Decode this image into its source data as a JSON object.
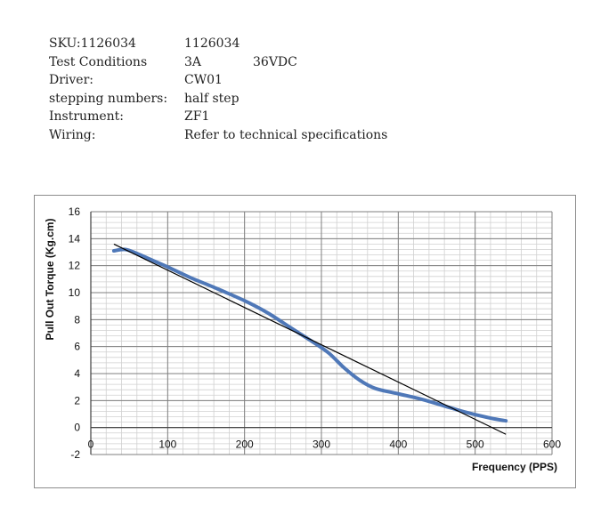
{
  "specs": [
    {
      "label": "SKU:1126034",
      "value": "1126034"
    },
    {
      "label": "Test Conditions",
      "value": "3A",
      "extra": "36VDC"
    },
    {
      "label": "Driver:",
      "value": "CW01"
    },
    {
      "label": "stepping numbers:",
      "value": "half step"
    },
    {
      "label": "Instrument:",
      "value": "ZF1"
    },
    {
      "label": "Wiring:",
      "value": "Refer to technical specifications"
    }
  ],
  "chart_data": {
    "type": "line",
    "xlabel": "Frequency (PPS)",
    "ylabel": "Pull Out Torque (Kg.cm)",
    "xlim": [
      0,
      600
    ],
    "ylim": [
      -2,
      16
    ],
    "x_ticks": [
      0,
      100,
      200,
      300,
      400,
      500,
      600
    ],
    "y_ticks": [
      -2,
      0,
      2,
      4,
      6,
      8,
      10,
      12,
      14,
      16
    ],
    "grid": true,
    "legend": "none",
    "series": [
      {
        "role": "measured",
        "color": "#4f78b8",
        "x": [
          30,
          45,
          60,
          80,
          100,
          130,
          160,
          200,
          230,
          260,
          290,
          310,
          330,
          350,
          370,
          400,
          430,
          460,
          490,
          520,
          540
        ],
        "y": [
          13.1,
          13.2,
          12.9,
          12.4,
          11.9,
          11.1,
          10.4,
          9.4,
          8.5,
          7.4,
          6.3,
          5.5,
          4.4,
          3.5,
          2.9,
          2.5,
          2.1,
          1.6,
          1.1,
          0.7,
          0.5
        ]
      },
      {
        "role": "trendline",
        "color": "#000000",
        "x": [
          30,
          540
        ],
        "y": [
          13.6,
          -0.5
        ]
      }
    ]
  }
}
